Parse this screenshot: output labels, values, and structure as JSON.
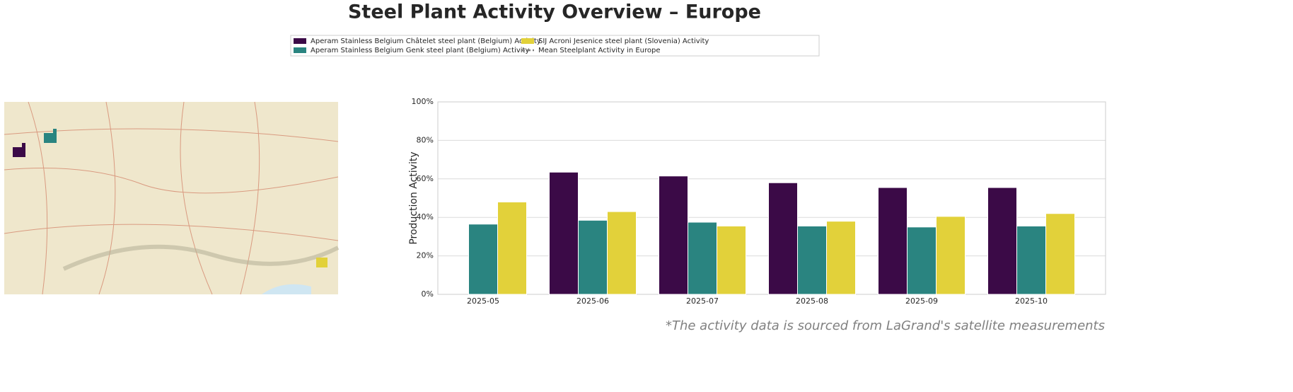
{
  "chart_data": {
    "type": "bar",
    "title": "Steel Plant Activity Overview – Europe",
    "ylabel": "Production Activity",
    "footnote": "*The activity data is sourced from LaGrand's satellite measurements",
    "categories": [
      "2025-05",
      "2025-06",
      "2025-07",
      "2025-08",
      "2025-09",
      "2025-10"
    ],
    "series": [
      {
        "name": "Aperam Stainless Belgium Châtelet steel plant (Belgium) Activity",
        "color": "#3b0a47",
        "values": [
          null,
          63.5,
          61.5,
          58,
          55.5,
          55.5
        ]
      },
      {
        "name": "Aperam Stainless Belgium Genk steel plant (Belgium) Activity",
        "color": "#2a8480",
        "values": [
          36.5,
          38.5,
          37.5,
          35.5,
          35,
          35.5
        ]
      },
      {
        "name": "SIJ Acroni Jesenice steel plant (Slovenia) Activity",
        "color": "#e2d13a",
        "values": [
          48,
          43,
          35.5,
          38,
          40.5,
          42
        ]
      },
      {
        "name": "Mean Steelplant Activity in Europe",
        "color": "#808080",
        "style": "dashed",
        "values": [
          null,
          null,
          null,
          null,
          null,
          null
        ]
      }
    ],
    "ylim": [
      0,
      100
    ],
    "yticks": [
      {
        "value": 0,
        "label": "0%"
      },
      {
        "value": 20,
        "label": "20%"
      },
      {
        "value": 40,
        "label": "40%"
      },
      {
        "value": 60,
        "label": "60%"
      },
      {
        "value": 80,
        "label": "80%"
      },
      {
        "value": 100,
        "label": "100%"
      }
    ],
    "grid": true,
    "legend": "top"
  }
}
